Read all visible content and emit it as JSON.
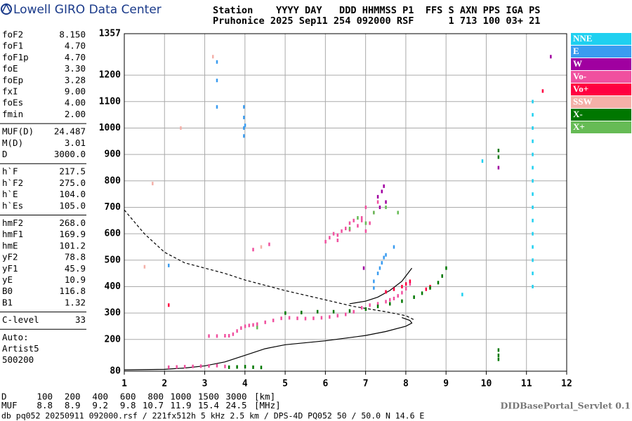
{
  "header": {
    "logo": "Lowell GIRO Data Center",
    "line1": "Station    YYYY DAY   DDD HHMMSS P1  FFS S AXN PPS IGA PS",
    "line2": "Pruhonice 2025 Sep11 254 092000 RSF      1 713 100 03+ 21"
  },
  "parameters": [
    [
      [
        "foF2",
        "8.150"
      ],
      [
        "foF1",
        "4.70"
      ],
      [
        "foF1p",
        "4.70"
      ],
      [
        "foE",
        "3.30"
      ],
      [
        "foEp",
        "3.28"
      ],
      [
        "fxI",
        "9.00"
      ],
      [
        "foEs",
        "4.00"
      ],
      [
        "fmin",
        "2.00"
      ]
    ],
    [
      [
        "MUF(D)",
        "24.487"
      ],
      [
        "M(D)",
        "3.01"
      ],
      [
        "D",
        "3000.0"
      ]
    ],
    [
      [
        "h`F",
        "217.5"
      ],
      [
        "h`F2",
        "275.0"
      ],
      [
        "h`E",
        "104.0"
      ],
      [
        "h`Es",
        "105.0"
      ]
    ],
    [
      [
        "hmF2",
        "268.0"
      ],
      [
        "hmF1",
        "169.9"
      ],
      [
        "hmE",
        "101.2"
      ],
      [
        "yF2",
        "78.8"
      ],
      [
        "yF1",
        "45.9"
      ],
      [
        "yE",
        "10.9"
      ],
      [
        "B0",
        "116.8"
      ],
      [
        "B1",
        "1.32"
      ]
    ],
    [
      [
        "C-level",
        "33"
      ]
    ]
  ],
  "auto": [
    "Auto:",
    "Artist5",
    "500200"
  ],
  "table": {
    "rows": [
      [
        "D",
        "100",
        "200",
        "400",
        "600",
        "800",
        "1000",
        "1500",
        "3000",
        "[km]"
      ],
      [
        "MUF",
        "8.8",
        "8.9",
        "9.2",
        "9.8",
        "10.7",
        "11.9",
        "15.4",
        "24.5",
        "[MHz]"
      ]
    ]
  },
  "footer": "db pq052 20250911 092000.rsf / 221fx512h 5 kHz 2.5 km / DPS-4D PQ052 50 / 50.0 N 14.6 E",
  "servlet": "DIDBasePortal_Servlet 0.1",
  "chart_data": {
    "type": "scatter",
    "xlim": [
      1,
      12
    ],
    "xticks": [
      1,
      2,
      3,
      4,
      5,
      6,
      7,
      8,
      9,
      10,
      11,
      12
    ],
    "ylim": [
      80,
      1357
    ],
    "yticks": [
      80,
      200,
      300,
      400,
      500,
      600,
      700,
      800,
      900,
      1000,
      1100,
      1200,
      1357
    ],
    "grid": true,
    "legend": "right",
    "series": [
      {
        "name": "NNE",
        "color": "#1fd0f0",
        "x": [
          11.15,
          11.15,
          11.15,
          11.15,
          11.15,
          11.15,
          11.15,
          11.15,
          11.15,
          11.15,
          11.15,
          11.15,
          11.15,
          11.15,
          11.15,
          9.9,
          9.4
        ],
        "y": [
          400,
          450,
          500,
          550,
          600,
          650,
          700,
          750,
          800,
          850,
          900,
          950,
          1000,
          1050,
          1100,
          875,
          370
        ]
      },
      {
        "name": "E",
        "color": "#3a9cf0",
        "x": [
          3.3,
          3.3,
          3.3,
          3.97,
          3.97,
          3.97,
          3.97,
          4.0,
          7.2,
          7.3,
          7.35,
          7.4,
          7.45,
          7.5,
          7.2,
          2.1,
          7.7
        ],
        "y": [
          1080,
          1180,
          1250,
          1080,
          1040,
          1000,
          970,
          1010,
          420,
          450,
          470,
          490,
          510,
          520,
          395,
          480,
          550
        ]
      },
      {
        "name": "W",
        "color": "#a000a0",
        "x": [
          7.3,
          7.4,
          7.45,
          7.5,
          7.35,
          6.95,
          11.6,
          10.3
        ],
        "y": [
          740,
          760,
          780,
          720,
          700,
          470,
          1270,
          850
        ]
      },
      {
        "name": "Vo-",
        "color": "#f0509f",
        "x": [
          2.1,
          2.3,
          2.5,
          2.7,
          2.9,
          3.1,
          3.3,
          3.5,
          3.1,
          3.3,
          3.5,
          3.6,
          3.7,
          3.8,
          3.9,
          4.0,
          4.1,
          4.2,
          4.3,
          4.5,
          4.7,
          4.9,
          5.1,
          5.3,
          5.5,
          5.7,
          5.9,
          6.1,
          6.3,
          6.5,
          6.7,
          6.9,
          7.1,
          7.3,
          7.5,
          7.6,
          7.7,
          7.8,
          7.9,
          8.0,
          8.1,
          6.0,
          6.1,
          6.2,
          6.3,
          6.4,
          6.5,
          6.6,
          6.7,
          6.8,
          6.9,
          7.0,
          7.1,
          7.2,
          7.3,
          6.3,
          6.6,
          6.9,
          7.0,
          4.6,
          4.2
        ],
        "y": [
          95,
          96,
          97,
          98,
          99,
          100,
          101,
          98,
          213,
          213,
          214,
          214,
          220,
          232,
          243,
          250,
          253,
          255,
          258,
          265,
          272,
          280,
          282,
          280,
          279,
          280,
          282,
          285,
          290,
          295,
          305,
          320,
          330,
          335,
          343,
          350,
          355,
          365,
          377,
          392,
          410,
          570,
          585,
          600,
          595,
          610,
          620,
          640,
          650,
          630,
          660,
          700,
          640,
          680,
          720,
          575,
          615,
          650,
          610,
          560,
          540
        ]
      },
      {
        "name": "Vo+",
        "color": "#ff0040",
        "x": [
          7.5,
          7.7,
          7.9,
          8.0,
          8.1,
          8.5,
          8.6,
          2.1,
          11.4
        ],
        "y": [
          380,
          390,
          400,
          410,
          420,
          390,
          400,
          330,
          1140
        ]
      },
      {
        "name": "SSW",
        "color": "#f4b0a8",
        "x": [
          1.5,
          1.7,
          4.4,
          2.4,
          3.2
        ],
        "y": [
          475,
          790,
          550,
          1000,
          1270
        ]
      },
      {
        "name": "X-",
        "color": "#007700",
        "x": [
          3.6,
          3.8,
          4.0,
          4.2,
          4.4,
          5.0,
          5.4,
          5.8,
          6.2,
          6.6,
          7.0,
          7.3,
          7.6,
          7.9,
          8.2,
          8.4,
          8.6,
          8.8,
          8.9,
          9.0,
          10.3,
          10.3,
          10.3,
          10.3,
          10.3
        ],
        "y": [
          95,
          96,
          97,
          95,
          94,
          300,
          302,
          305,
          305,
          308,
          315,
          325,
          335,
          345,
          360,
          375,
          395,
          415,
          440,
          470,
          890,
          915,
          140,
          160,
          125
        ]
      },
      {
        "name": "X+",
        "color": "#66bb55",
        "x": [
          6.6,
          6.8,
          7.0,
          7.2,
          7.5,
          7.8,
          4.3
        ],
        "y": [
          620,
          660,
          640,
          680,
          700,
          680,
          245
        ]
      }
    ],
    "curves": [
      {
        "style": "solid",
        "color": "#000000",
        "x": [
          1,
          2,
          2.5,
          3,
          3.5,
          4,
          4.5,
          5,
          6,
          7,
          7.5,
          8,
          8.15,
          8.1,
          7.9
        ],
        "y": [
          85,
          87,
          92,
          100,
          115,
          140,
          165,
          180,
          195,
          215,
          230,
          250,
          262,
          272,
          283
        ]
      },
      {
        "style": "solid",
        "color": "#000000",
        "x": [
          6.6,
          7,
          7.3,
          7.6,
          7.9,
          8.15
        ],
        "y": [
          335,
          345,
          360,
          385,
          420,
          470
        ]
      },
      {
        "style": "dashed",
        "color": "#000000",
        "x": [
          1,
          1.5,
          2,
          2.5,
          3,
          3.5,
          4,
          5,
          6,
          6.7,
          7.5,
          8,
          8.2
        ],
        "y": [
          690,
          600,
          530,
          490,
          470,
          450,
          425,
          385,
          350,
          325,
          305,
          290,
          275
        ]
      }
    ]
  }
}
